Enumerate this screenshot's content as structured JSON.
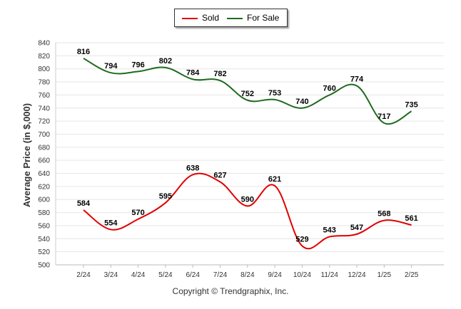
{
  "chart_data": {
    "type": "line",
    "title": "",
    "xlabel": "",
    "ylabel": "Average Price (in $,000)",
    "ylim": [
      500,
      840
    ],
    "ytick_step": 20,
    "grid": true,
    "legend_placement": "top-center",
    "categories": [
      "2/24",
      "3/24",
      "4/24",
      "5/24",
      "6/24",
      "7/24",
      "8/24",
      "9/24",
      "10/24",
      "11/24",
      "12/24",
      "1/25",
      "2/25"
    ],
    "series": [
      {
        "name": "Sold",
        "color": "#e00000",
        "values": [
          584,
          554,
          570,
          595,
          638,
          627,
          590,
          621,
          529,
          543,
          547,
          568,
          561
        ]
      },
      {
        "name": "For Sale",
        "color": "#1e6b1e",
        "values": [
          816,
          794,
          796,
          802,
          784,
          782,
          752,
          753,
          740,
          760,
          774,
          717,
          735
        ]
      }
    ]
  },
  "legend": {
    "sold": "Sold",
    "for_sale": "For Sale"
  },
  "footer": {
    "copyright": "Copyright © Trendgraphix, Inc."
  }
}
